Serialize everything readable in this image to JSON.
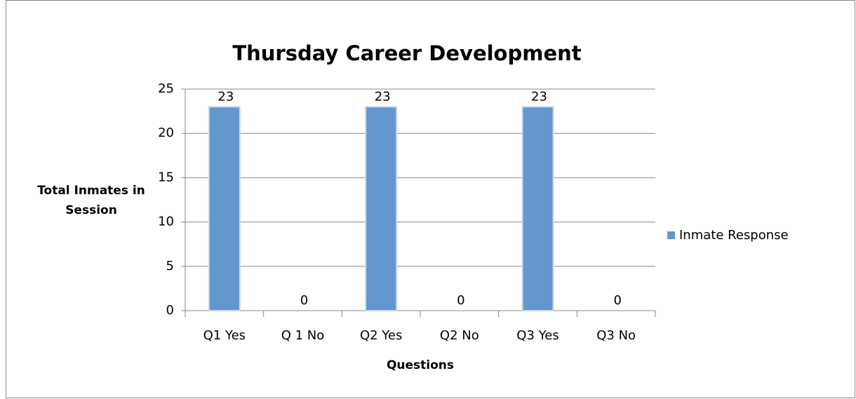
{
  "chart_data": {
    "type": "bar",
    "title": "Thursday Career Development",
    "x_label": "Questions",
    "y_label": "Total Inmates in Session",
    "categories": [
      "Q1 Yes",
      "Q 1 No",
      "Q2 Yes",
      "Q2 No",
      "Q3 Yes",
      "Q3 No"
    ],
    "series": [
      {
        "name": "Inmate Response",
        "color": "#6396cc",
        "values": [
          23,
          0,
          23,
          0,
          23,
          0
        ]
      }
    ],
    "ylim": [
      0,
      25
    ],
    "yticks": [
      0,
      5,
      10,
      15,
      20,
      25
    ],
    "grid": true,
    "legend": "right"
  }
}
